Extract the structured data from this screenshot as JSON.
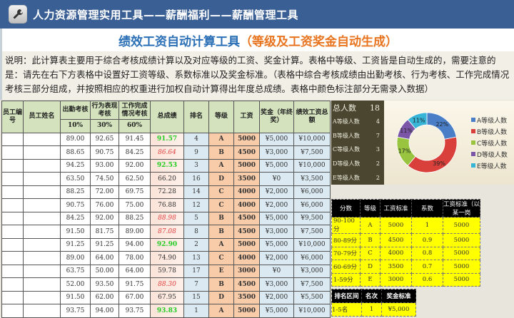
{
  "header": {
    "title": "人力资源管理实用工具——薪酬福利——薪酬管理工具",
    "icon": "wrench-icon"
  },
  "page_title": {
    "main": "绩效工资自动计算工具",
    "sub": "（等级及工资奖金自动生成）"
  },
  "description": "说明：此计算表主要用于综合考核成绩计算以及对应等级的工资、奖金计算。表格中等级、工资皆是自动生成的，需要注意的是：请先在右下方表格中设置好工资等级、系数标准以及奖金标准。（表格中综合考核成绩由出勤考核、行为考核、工作完成情况考核三部分组成，并按照相应的权重进行加权自动计算得出年度总成绩。表格中颜色标注部分无需录入数据）",
  "main_table": {
    "headers": {
      "emp_id": "员工编号",
      "emp_name": "员工姓名",
      "attendance": "出勤考核",
      "behavior": "行为表现考核",
      "work": "工作完成情况考核",
      "total": "总成绩",
      "rank": "排名",
      "grade": "等级",
      "salary": "工资",
      "bonus": "奖金（年终奖）",
      "perf_total": "绩效工资总额"
    },
    "weights": {
      "attendance": "10%",
      "behavior": "30%",
      "work": "60%"
    },
    "rows": [
      {
        "a": "89.00",
        "b": "92.65",
        "w": "91.45",
        "t": "91.57",
        "tc": "hi",
        "r": "4",
        "g": "A",
        "s": "5000",
        "bo": "¥5,000",
        "p": "¥10,000"
      },
      {
        "a": "88.65",
        "b": "90.75",
        "w": "84.25",
        "t": "86.64",
        "tc": "mid",
        "r": "9",
        "g": "B",
        "s": "4500",
        "bo": "¥3,000",
        "p": "¥7,500"
      },
      {
        "a": "94.25",
        "b": "93.00",
        "w": "92.00",
        "t": "92.53",
        "tc": "hi",
        "r": "3",
        "g": "A",
        "s": "5000",
        "bo": "¥5,000",
        "p": "¥10,000"
      },
      {
        "a": "63.50",
        "b": "74.50",
        "w": "62.50",
        "t": "66.20",
        "tc": "",
        "r": "16",
        "g": "D",
        "s": "3500",
        "bo": "¥0",
        "p": "¥3,500"
      },
      {
        "a": "88.25",
        "b": "72.00",
        "w": "69.75",
        "t": "72.28",
        "tc": "",
        "r": "14",
        "g": "C",
        "s": "4000",
        "bo": "¥2,000",
        "p": "¥6,000"
      },
      {
        "a": "90.75",
        "b": "76.00",
        "w": "75.00",
        "t": "76.88",
        "tc": "",
        "r": "12",
        "g": "C",
        "s": "4000",
        "bo": "¥2,000",
        "p": "¥6,000"
      },
      {
        "a": "84.25",
        "b": "92.00",
        "w": "88.25",
        "t": "88.98",
        "tc": "mid",
        "r": "5",
        "g": "B",
        "s": "4500",
        "bo": "¥5,000",
        "p": "¥9,500"
      },
      {
        "a": "91.50",
        "b": "81.75",
        "w": "89.00",
        "t": "87.08",
        "tc": "mid",
        "r": "8",
        "g": "B",
        "s": "4500",
        "bo": "¥3,000",
        "p": "¥7,500"
      },
      {
        "a": "91.25",
        "b": "91.25",
        "w": "94.00",
        "t": "92.90",
        "tc": "hi",
        "r": "2",
        "g": "A",
        "s": "5000",
        "bo": "¥5,000",
        "p": "¥10,000"
      },
      {
        "a": "89.00",
        "b": "64.00",
        "w": "78.00",
        "t": "74.90",
        "tc": "",
        "r": "13",
        "g": "C",
        "s": "4000",
        "bo": "¥2,000",
        "p": "¥6,000"
      },
      {
        "a": "63.75",
        "b": "50.00",
        "w": "64.00",
        "t": "59.78",
        "tc": "",
        "r": "17",
        "g": "E",
        "s": "3000",
        "bo": "¥0",
        "p": "¥3,000"
      },
      {
        "a": "52.00",
        "b": "93.50",
        "w": "91.75",
        "t": "88.30",
        "tc": "mid",
        "r": "7",
        "g": "B",
        "s": "4500",
        "bo": "¥3,000",
        "p": "¥7,500"
      },
      {
        "a": "91.50",
        "b": "62.00",
        "w": "67.00",
        "t": "67.95",
        "tc": "",
        "r": "15",
        "g": "D",
        "s": "3500",
        "bo": "¥2,000",
        "p": "¥5,500"
      },
      {
        "a": "93.75",
        "b": "94.00",
        "w": "93.75",
        "t": "93.83",
        "tc": "hi",
        "r": "1",
        "g": "A",
        "s": "5000",
        "bo": "¥5,000",
        "p": "¥10,000"
      }
    ]
  },
  "stats": {
    "total_label": "总人数",
    "total_value": "18",
    "rows": [
      {
        "label": "A等级人数",
        "value": "4"
      },
      {
        "label": "B等级人数",
        "value": "7"
      },
      {
        "label": "C等级人数",
        "value": "3"
      },
      {
        "label": "D等级人数",
        "value": "2"
      },
      {
        "label": "E等级人数",
        "value": "2"
      }
    ]
  },
  "chart_data": {
    "type": "pie",
    "style": "donut",
    "categories": [
      "A等级人数",
      "B等级人数",
      "C等级人数",
      "D等级人数",
      "E等级人数"
    ],
    "values": [
      22,
      39,
      17,
      11,
      11
    ],
    "labels": [
      "22%",
      "39%",
      "17%",
      "11%",
      "11%"
    ],
    "colors": [
      "#4a7fc8",
      "#d9403b",
      "#98c440",
      "#7b56a8",
      "#38b4d6"
    ],
    "legend_position": "right"
  },
  "grade_table": {
    "headers": [
      "分数",
      "等级",
      "工资标准",
      "系数",
      "工资标准（以某一岗"
    ],
    "rows": [
      [
        "90-100分",
        "A",
        "5000",
        "1",
        "5000"
      ],
      [
        "80-89分",
        "B",
        "4500",
        "0.9",
        "5000"
      ],
      [
        "70-79分",
        "C",
        "4000",
        "0.8",
        "5000"
      ],
      [
        "60-69分",
        "D",
        "3500",
        "0.7",
        "5000"
      ],
      [
        "1-59分",
        "E",
        "3000",
        "0.6",
        "5000"
      ]
    ]
  },
  "bonus_table": {
    "headers": [
      "排名区间",
      "名次",
      "奖金标准"
    ],
    "rows": [
      [
        "1-5名",
        "1",
        "¥5,000"
      ]
    ]
  }
}
